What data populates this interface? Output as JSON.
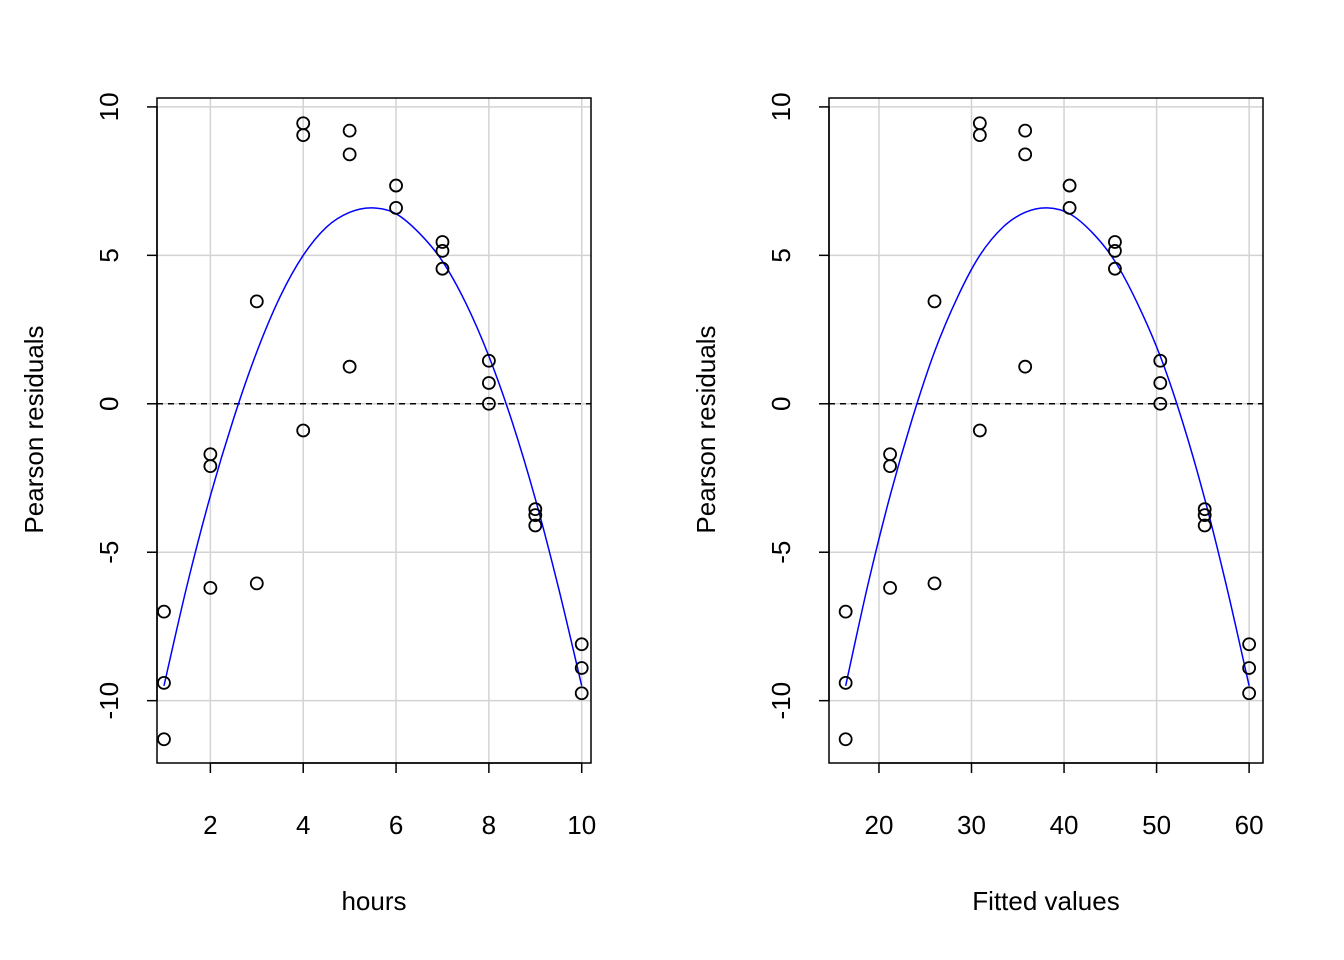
{
  "chart_data": [
    {
      "type": "scatter",
      "xlabel": "hours",
      "ylabel": "Pearson residuals",
      "xlim": [
        0.85,
        10.2
      ],
      "ylim": [
        -12.1,
        10.3
      ],
      "xticks": [
        2,
        4,
        6,
        8,
        10
      ],
      "yticks": [
        -10,
        -5,
        0,
        5,
        10
      ],
      "grid": true,
      "reference_line": {
        "y": 0,
        "style": "dashed",
        "color": "#000000"
      },
      "points": {
        "x": [
          1,
          1,
          1,
          2,
          2,
          2,
          3,
          3,
          4,
          4,
          4,
          5,
          5,
          5,
          6,
          6,
          7,
          7,
          7,
          8,
          8,
          8,
          9,
          9,
          9,
          10,
          10,
          10
        ],
        "y": [
          -7.0,
          -9.4,
          -11.3,
          -1.7,
          -2.1,
          -6.2,
          3.45,
          -6.05,
          9.45,
          9.05,
          -0.9,
          9.2,
          8.4,
          1.25,
          7.35,
          6.6,
          5.45,
          5.15,
          4.55,
          1.45,
          0.7,
          0.0,
          -3.55,
          -3.75,
          -4.1,
          -8.1,
          -8.9,
          -9.75
        ],
        "marker": "open-circle",
        "color": "#000000"
      },
      "smooth": {
        "color": "#0000ff",
        "x": [
          1,
          1.5,
          2,
          2.5,
          3,
          3.5,
          4,
          4.5,
          5,
          5.5,
          6,
          6.5,
          7,
          7.5,
          8,
          8.5,
          9,
          9.5,
          10
        ],
        "y": [
          -9.5,
          -6.1,
          -3.1,
          -0.5,
          1.75,
          3.6,
          5.0,
          5.95,
          6.45,
          6.6,
          6.4,
          5.75,
          4.8,
          3.4,
          1.6,
          -0.6,
          -3.2,
          -6.2,
          -9.5
        ]
      }
    },
    {
      "type": "scatter",
      "xlabel": "Fitted values",
      "ylabel": "Pearson residuals",
      "xlim": [
        14.6,
        61.5
      ],
      "ylim": [
        -12.1,
        10.3
      ],
      "xticks": [
        20,
        30,
        40,
        50,
        60
      ],
      "yticks": [
        -10,
        -5,
        0,
        5,
        10
      ],
      "grid": true,
      "reference_line": {
        "y": 0,
        "style": "dashed",
        "color": "#000000"
      },
      "points": {
        "x": [
          16.4,
          16.4,
          16.4,
          21.2,
          21.2,
          21.2,
          26.0,
          26.0,
          30.9,
          30.9,
          30.9,
          35.8,
          35.8,
          35.8,
          40.6,
          40.6,
          45.5,
          45.5,
          45.5,
          50.4,
          50.4,
          50.4,
          55.2,
          55.2,
          55.2,
          60.0,
          60.0,
          60.0
        ],
        "y": [
          -7.0,
          -9.4,
          -11.3,
          -1.7,
          -2.1,
          -6.2,
          3.45,
          -6.05,
          9.45,
          9.05,
          -0.9,
          9.2,
          8.4,
          1.25,
          7.35,
          6.6,
          5.45,
          5.15,
          4.55,
          1.45,
          0.7,
          0.0,
          -3.55,
          -3.75,
          -4.1,
          -8.1,
          -8.9,
          -9.75
        ],
        "marker": "open-circle",
        "color": "#000000"
      },
      "smooth": {
        "color": "#0000ff",
        "x": [
          16.4,
          18.8,
          21.2,
          23.6,
          26.0,
          28.5,
          30.9,
          33.4,
          35.8,
          38.2,
          40.6,
          43.1,
          45.5,
          47.9,
          50.4,
          52.8,
          55.2,
          57.6,
          60.0
        ],
        "y": [
          -9.5,
          -6.1,
          -3.1,
          -0.5,
          1.75,
          3.6,
          5.0,
          5.95,
          6.45,
          6.6,
          6.4,
          5.75,
          4.8,
          3.4,
          1.6,
          -0.6,
          -3.2,
          -6.2,
          -9.5
        ]
      }
    }
  ]
}
